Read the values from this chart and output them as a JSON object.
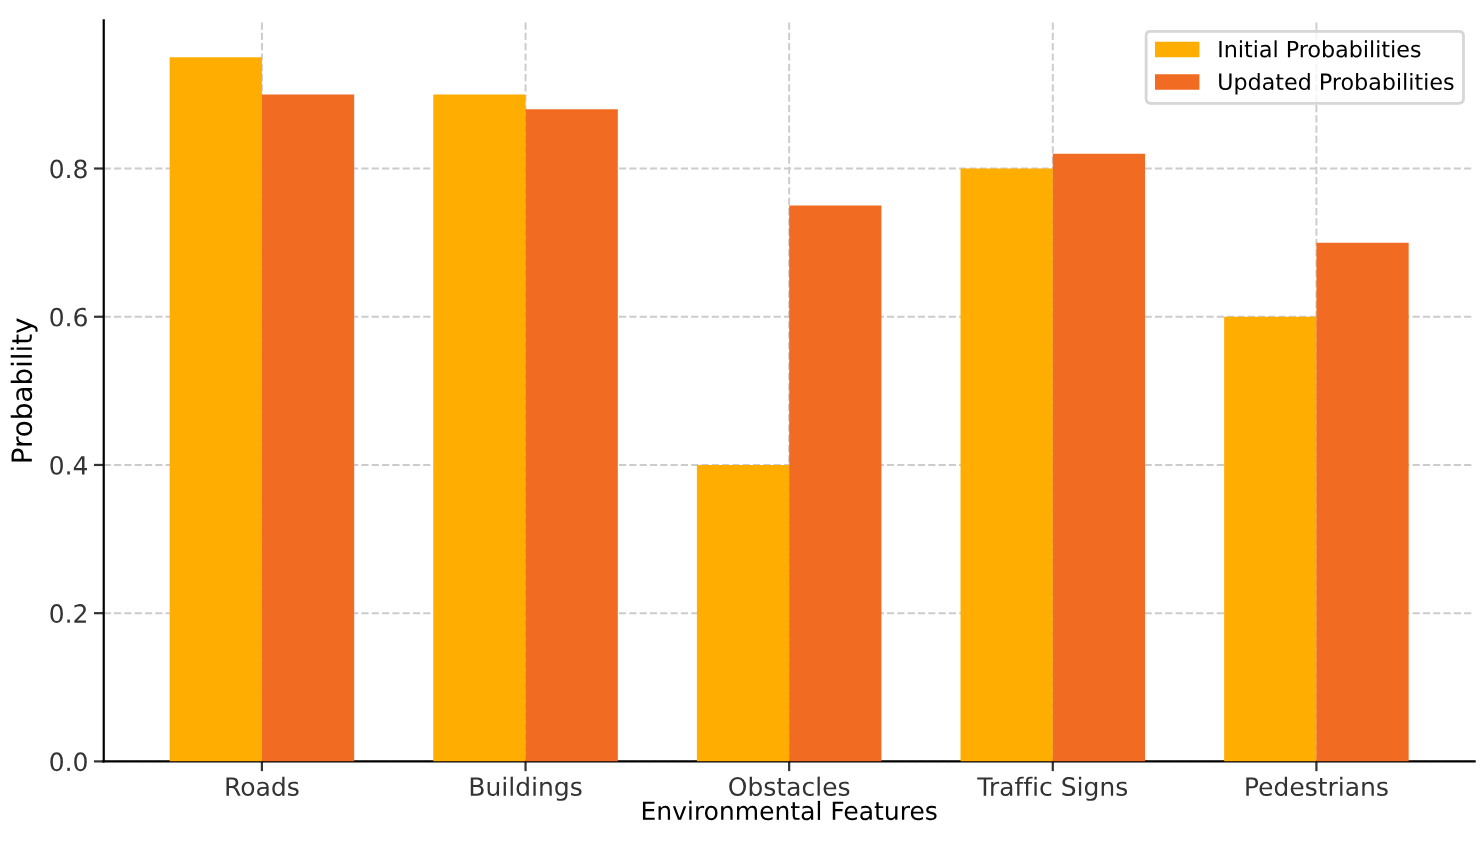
{
  "chart_data": {
    "type": "bar",
    "xlabel": "Environmental Features",
    "ylabel": "Probability",
    "categories": [
      "Roads",
      "Buildings",
      "Obstacles",
      "Traffic Signs",
      "Pedestrians"
    ],
    "series": [
      {
        "name": "Initial Probabilities",
        "color": "#ffad00",
        "values": [
          0.95,
          0.9,
          0.4,
          0.8,
          0.6
        ]
      },
      {
        "name": "Updated Probabilities",
        "color": "#f26b22",
        "values": [
          0.9,
          0.88,
          0.75,
          0.82,
          0.7
        ]
      }
    ],
    "ylim": [
      0,
      1.0
    ],
    "yticks": [
      {
        "value": 0,
        "label": "0.0"
      },
      0.2,
      0.4,
      0.6,
      0.8
    ],
    "grid": true,
    "legend": "top right"
  }
}
